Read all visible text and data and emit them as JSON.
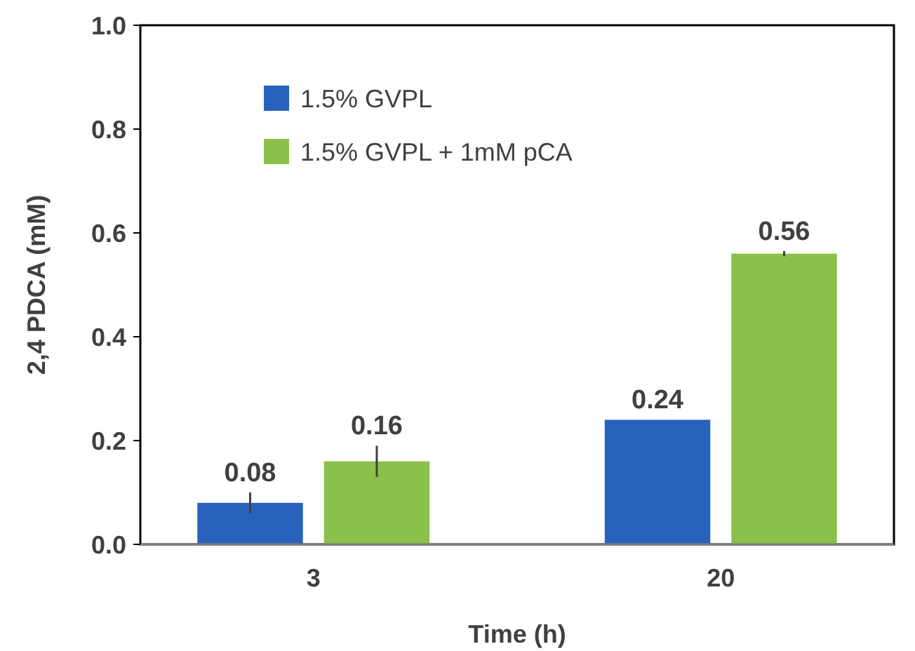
{
  "chart_data": {
    "type": "bar",
    "xlabel": "Time (h)",
    "ylabel": "2,4 PDCA (mM)",
    "categories": [
      "3",
      "20"
    ],
    "series": [
      {
        "name": "1.5% GVPL",
        "color": "#2962bd",
        "values": [
          0.08,
          0.24
        ],
        "errors": [
          0.02,
          null
        ]
      },
      {
        "name": "1.5% GVPL + 1mM pCA",
        "color": "#8bc04a",
        "values": [
          0.16,
          0.56
        ],
        "errors": [
          0.03,
          0.005
        ]
      }
    ],
    "ylim": [
      0,
      1
    ],
    "yticks": [
      {
        "value": 0,
        "label": "0.0"
      },
      {
        "value": 0.2,
        "label": "0.2"
      },
      {
        "value": 0.4,
        "label": "0.4"
      },
      {
        "value": 0.6,
        "label": "0.6"
      },
      {
        "value": 0.8,
        "label": "0.8"
      },
      {
        "value": 1,
        "label": "1.0"
      }
    ],
    "grid": false,
    "legend": "top left",
    "data_labels": true
  }
}
